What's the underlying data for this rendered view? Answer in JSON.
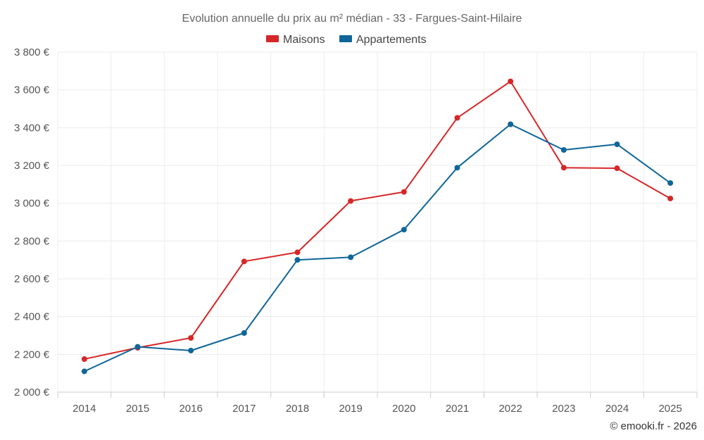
{
  "chart_data": {
    "type": "line",
    "title": "Evolution annuelle du prix au m² médian - 33 - Fargues-Saint-Hilaire",
    "categories": [
      "2014",
      "2015",
      "2016",
      "2017",
      "2018",
      "2019",
      "2020",
      "2021",
      "2022",
      "2023",
      "2024",
      "2025"
    ],
    "series": [
      {
        "name": "Maisons",
        "color": "#d62728",
        "values": [
          2175,
          2235,
          2287,
          2692,
          2740,
          3012,
          3060,
          3452,
          3645,
          3188,
          3185,
          3025
        ]
      },
      {
        "name": "Appartements",
        "color": "#0f6699",
        "values": [
          2110,
          2240,
          2220,
          2313,
          2700,
          2714,
          2860,
          3188,
          3418,
          3282,
          3312,
          3107
        ]
      }
    ],
    "ylim": [
      2000,
      3800
    ],
    "yticks": [
      2000,
      2200,
      2400,
      2600,
      2800,
      3000,
      3200,
      3400,
      3600,
      3800
    ],
    "ytick_labels": [
      "2 000 €",
      "2 200 €",
      "2 400 €",
      "2 600 €",
      "2 800 €",
      "3 000 €",
      "3 200 €",
      "3 400 €",
      "3 600 €",
      "3 800 €"
    ],
    "legend_position": "top-center",
    "grid": true,
    "xlabel": "",
    "ylabel": ""
  },
  "credit": "© emooki.fr - 2026"
}
